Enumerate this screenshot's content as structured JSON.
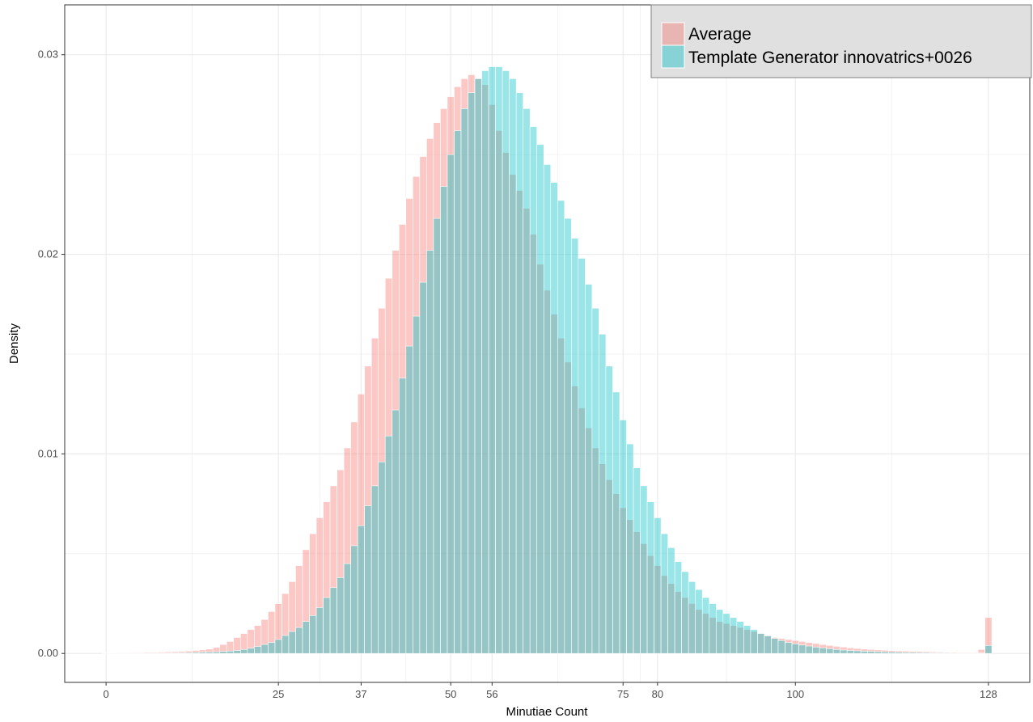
{
  "chart_data": {
    "type": "bar",
    "xlabel": "Minutiae Count",
    "ylabel": "Density",
    "xlim": [
      -6,
      134
    ],
    "ylim": [
      -0.00145,
      0.0325
    ],
    "x_ticks": [
      0,
      25,
      37,
      50,
      56,
      75,
      80,
      100,
      128
    ],
    "x_tick_labels": [
      "0",
      "25",
      "37",
      "50",
      "56",
      "75",
      "80",
      "100",
      "128"
    ],
    "y_ticks": [
      0.0,
      0.01,
      0.02,
      0.03
    ],
    "y_tick_labels": [
      "0.00",
      "0.01",
      "0.02",
      "0.03"
    ],
    "grid": true,
    "legend_position": "top-right",
    "colors": {
      "series_a": "#F8766D",
      "series_b": "#00BFC4",
      "overlap": "#B8B2AE",
      "legend_bg": "#E0E0E0",
      "grid": "#EBEBEB",
      "panel_border": "#333333"
    },
    "series": [
      {
        "name": "Average",
        "x": [
          0,
          1,
          2,
          3,
          4,
          5,
          6,
          7,
          8,
          9,
          10,
          11,
          12,
          13,
          14,
          15,
          16,
          17,
          18,
          19,
          20,
          21,
          22,
          23,
          24,
          25,
          26,
          27,
          28,
          29,
          30,
          31,
          32,
          33,
          34,
          35,
          36,
          37,
          38,
          39,
          40,
          41,
          42,
          43,
          44,
          45,
          46,
          47,
          48,
          49,
          50,
          51,
          52,
          53,
          54,
          55,
          56,
          57,
          58,
          59,
          60,
          61,
          62,
          63,
          64,
          65,
          66,
          67,
          68,
          69,
          70,
          71,
          72,
          73,
          74,
          75,
          76,
          77,
          78,
          79,
          80,
          81,
          82,
          83,
          84,
          85,
          86,
          87,
          88,
          89,
          90,
          91,
          92,
          93,
          94,
          95,
          96,
          97,
          98,
          99,
          100,
          101,
          102,
          103,
          104,
          105,
          106,
          107,
          108,
          109,
          110,
          111,
          112,
          113,
          114,
          115,
          116,
          117,
          118,
          119,
          120,
          121,
          122,
          123,
          124,
          125,
          126,
          127,
          128
        ],
        "values": [
          2e-05,
          2e-05,
          3e-05,
          3e-05,
          4e-05,
          4e-05,
          5e-05,
          6e-05,
          7e-05,
          8e-05,
          9e-05,
          0.0001,
          0.00012,
          0.00015,
          0.00018,
          0.00022,
          0.0003,
          0.00045,
          0.0006,
          0.0008,
          0.001,
          0.0012,
          0.0014,
          0.0017,
          0.0021,
          0.0025,
          0.003,
          0.0036,
          0.0044,
          0.0052,
          0.006,
          0.0068,
          0.0076,
          0.0084,
          0.0092,
          0.0103,
          0.0116,
          0.013,
          0.0144,
          0.0158,
          0.0173,
          0.0188,
          0.0202,
          0.0215,
          0.0228,
          0.0239,
          0.0249,
          0.0258,
          0.0266,
          0.0273,
          0.0279,
          0.0284,
          0.0288,
          0.029,
          0.0288,
          0.0285,
          0.0275,
          0.0262,
          0.0251,
          0.024,
          0.0232,
          0.0223,
          0.021,
          0.0195,
          0.0182,
          0.017,
          0.0158,
          0.0146,
          0.0134,
          0.0123,
          0.0113,
          0.0103,
          0.0095,
          0.0087,
          0.008,
          0.0073,
          0.0067,
          0.0061,
          0.0055,
          0.0049,
          0.0044,
          0.0039,
          0.0035,
          0.0031,
          0.0028,
          0.0025,
          0.0022,
          0.002,
          0.0018,
          0.0016,
          0.0015,
          0.0014,
          0.0013,
          0.0012,
          0.0011,
          0.001,
          0.0009,
          0.0008,
          0.00075,
          0.0007,
          0.00065,
          0.0006,
          0.00055,
          0.0005,
          0.00045,
          0.0004,
          0.00036,
          0.00032,
          0.00028,
          0.00025,
          0.00022,
          0.0002,
          0.00018,
          0.00016,
          0.00014,
          0.00013,
          0.00012,
          0.00011,
          0.0001,
          9e-05,
          8e-05,
          7e-05,
          6e-05,
          6e-05,
          5e-05,
          5e-05,
          5e-05,
          0.0002,
          0.0018
        ]
      },
      {
        "name": "Template Generator innovatrics+0026",
        "x": [
          0,
          1,
          2,
          3,
          4,
          5,
          6,
          7,
          8,
          9,
          10,
          11,
          12,
          13,
          14,
          15,
          16,
          17,
          18,
          19,
          20,
          21,
          22,
          23,
          24,
          25,
          26,
          27,
          28,
          29,
          30,
          31,
          32,
          33,
          34,
          35,
          36,
          37,
          38,
          39,
          40,
          41,
          42,
          43,
          44,
          45,
          46,
          47,
          48,
          49,
          50,
          51,
          52,
          53,
          54,
          55,
          56,
          57,
          58,
          59,
          60,
          61,
          62,
          63,
          64,
          65,
          66,
          67,
          68,
          69,
          70,
          71,
          72,
          73,
          74,
          75,
          76,
          77,
          78,
          79,
          80,
          81,
          82,
          83,
          84,
          85,
          86,
          87,
          88,
          89,
          90,
          91,
          92,
          93,
          94,
          95,
          96,
          97,
          98,
          99,
          100,
          101,
          102,
          103,
          104,
          105,
          106,
          107,
          108,
          109,
          110,
          111,
          112,
          113,
          114,
          115,
          116,
          117,
          118,
          119,
          120,
          121,
          122,
          123,
          124,
          125,
          126,
          127,
          128
        ],
        "values": [
          1e-05,
          1e-05,
          1e-05,
          1e-05,
          1e-05,
          1e-05,
          1e-05,
          2e-05,
          2e-05,
          2e-05,
          3e-05,
          3e-05,
          4e-05,
          5e-05,
          6e-05,
          7e-05,
          8e-05,
          0.0001,
          0.00012,
          0.00015,
          0.0002,
          0.00026,
          0.00035,
          0.00045,
          0.00055,
          0.0007,
          0.0009,
          0.0011,
          0.0013,
          0.0016,
          0.0019,
          0.0023,
          0.0028,
          0.0033,
          0.0038,
          0.0045,
          0.0054,
          0.0064,
          0.0074,
          0.0084,
          0.0096,
          0.0109,
          0.0122,
          0.0138,
          0.0154,
          0.0169,
          0.0186,
          0.0202,
          0.0218,
          0.0234,
          0.025,
          0.0262,
          0.0273,
          0.0281,
          0.0288,
          0.0292,
          0.0294,
          0.0294,
          0.0292,
          0.0288,
          0.0281,
          0.0273,
          0.0264,
          0.0255,
          0.0245,
          0.0236,
          0.0227,
          0.0218,
          0.0208,
          0.0198,
          0.0185,
          0.0173,
          0.016,
          0.0144,
          0.0131,
          0.0117,
          0.0105,
          0.0093,
          0.0084,
          0.0076,
          0.0068,
          0.006,
          0.0053,
          0.0046,
          0.0041,
          0.0036,
          0.0032,
          0.0028,
          0.0025,
          0.0022,
          0.002,
          0.0018,
          0.0016,
          0.0014,
          0.0012,
          0.001,
          0.00088,
          0.00075,
          0.00065,
          0.00055,
          0.00048,
          0.00042,
          0.00037,
          0.00032,
          0.00028,
          0.00024,
          0.0002,
          0.00017,
          0.00015,
          0.00013,
          0.00011,
          0.0001,
          9e-05,
          8e-05,
          7e-05,
          6e-05,
          5e-05,
          5e-05,
          4e-05,
          4e-05,
          3e-05,
          3e-05,
          3e-05,
          2e-05,
          2e-05,
          2e-05,
          2e-05,
          2e-05,
          0.0004
        ]
      }
    ]
  }
}
